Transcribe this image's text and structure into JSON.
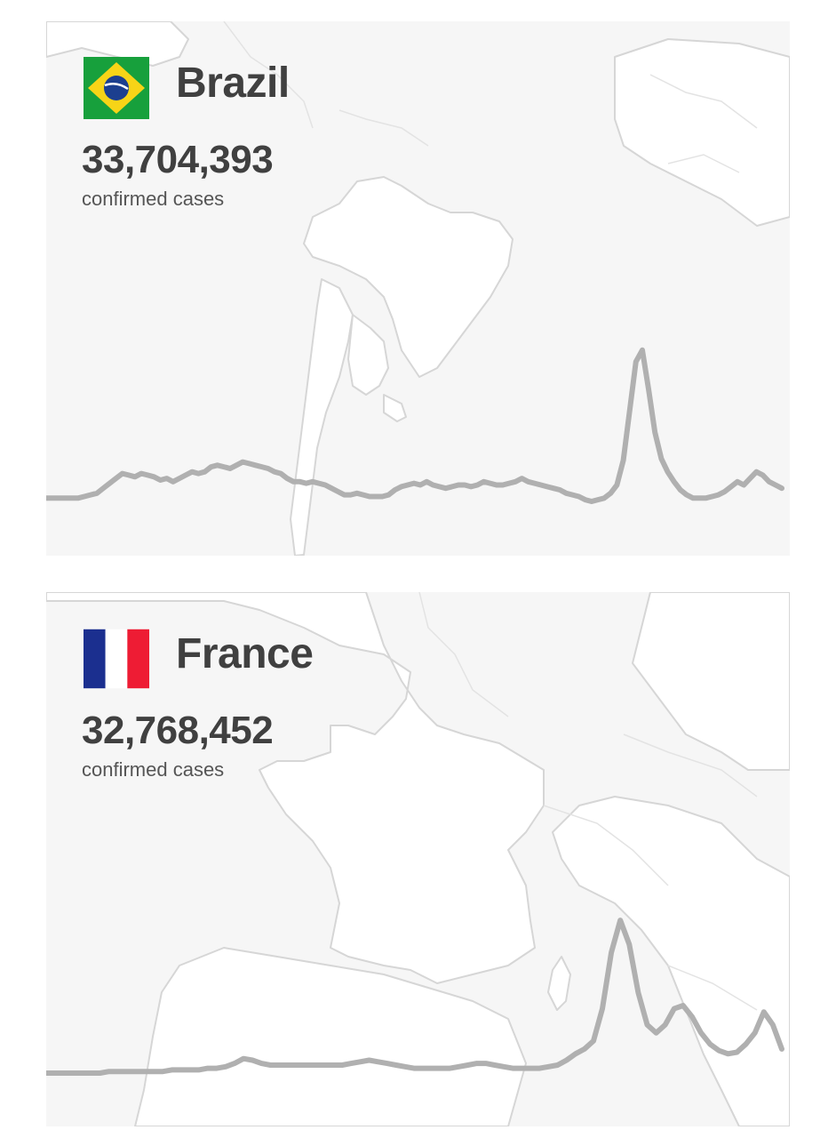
{
  "cards": [
    {
      "country": "Brazil",
      "count": "33,704,393",
      "caption": "confirmed cases",
      "flag": "brazil-flag",
      "trend_color": "#b0b0b0",
      "trend": [
        2,
        2,
        2,
        2,
        2,
        2,
        3,
        4,
        5,
        8,
        11,
        14,
        17,
        16,
        15,
        17,
        16,
        15,
        13,
        14,
        12,
        14,
        16,
        18,
        17,
        18,
        21,
        22,
        21,
        20,
        22,
        24,
        23,
        22,
        21,
        20,
        18,
        17,
        14,
        12,
        12,
        11,
        12,
        11,
        10,
        8,
        6,
        4,
        4,
        5,
        4,
        3,
        3,
        3,
        4,
        7,
        9,
        10,
        11,
        10,
        12,
        10,
        9,
        8,
        9,
        10,
        10,
        9,
        10,
        12,
        11,
        10,
        10,
        11,
        12,
        14,
        12,
        11,
        10,
        9,
        8,
        7,
        5,
        4,
        3,
        1,
        0,
        1,
        2,
        5,
        10,
        25,
        55,
        85,
        92,
        68,
        42,
        26,
        18,
        12,
        7,
        4,
        2,
        2,
        2,
        3,
        4,
        6,
        9,
        12,
        10,
        14,
        18,
        16,
        12,
        10,
        8
      ],
      "ylim": [
        0,
        100
      ]
    },
    {
      "country": "France",
      "count": "32,768,452",
      "caption": "confirmed cases",
      "flag": "france-flag",
      "trend_color": "#b0b0b0",
      "trend": [
        0,
        0,
        0,
        0,
        0,
        0,
        0,
        1,
        1,
        1,
        1,
        1,
        1,
        1,
        2,
        2,
        2,
        2,
        3,
        3,
        4,
        6,
        9,
        8,
        6,
        5,
        5,
        5,
        5,
        5,
        5,
        5,
        5,
        5,
        6,
        7,
        8,
        7,
        6,
        5,
        4,
        3,
        3,
        3,
        3,
        3,
        4,
        5,
        6,
        6,
        5,
        4,
        3,
        3,
        3,
        3,
        4,
        5,
        8,
        12,
        15,
        20,
        40,
        75,
        95,
        80,
        50,
        30,
        25,
        30,
        40,
        42,
        35,
        25,
        18,
        14,
        12,
        13,
        18,
        25,
        38,
        30,
        15
      ],
      "ylim": [
        0,
        100
      ]
    }
  ]
}
